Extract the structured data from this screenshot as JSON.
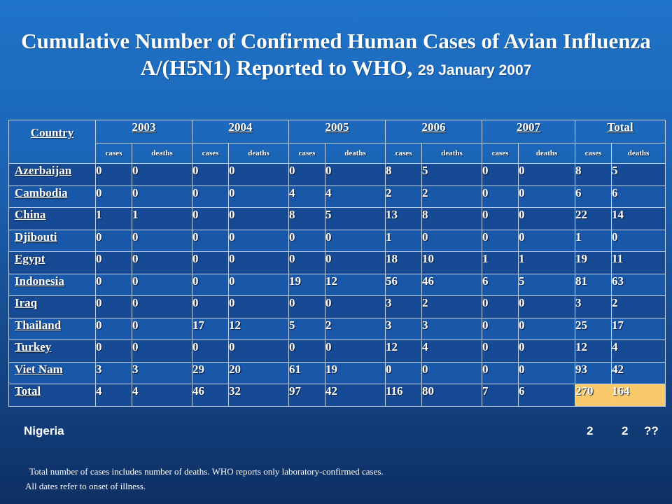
{
  "title": {
    "main": "Cumulative Number of Confirmed Human Cases of Avian Influenza A/(H5N1) Reported to WHO,",
    "date": "29 January 2007"
  },
  "table": {
    "country_header": "Country",
    "years": [
      "2003",
      "2004",
      "2005",
      "2006",
      "2007",
      "Total"
    ],
    "sub_cases": "cases",
    "sub_deaths": "deaths",
    "rows": [
      {
        "country": "Azerbaijan",
        "values": [
          "0",
          "0",
          "0",
          "0",
          "0",
          "0",
          "8",
          "5",
          "0",
          "0",
          "8",
          "5"
        ]
      },
      {
        "country": "Cambodia",
        "values": [
          "0",
          "0",
          "0",
          "0",
          "4",
          "4",
          "2",
          "2",
          "0",
          "0",
          "6",
          "6"
        ]
      },
      {
        "country": "China",
        "values": [
          "1",
          "1",
          "0",
          "0",
          "8",
          "5",
          "13",
          "8",
          "0",
          "0",
          "22",
          "14"
        ]
      },
      {
        "country": "Djibouti",
        "values": [
          "0",
          "0",
          "0",
          "0",
          "0",
          "0",
          "1",
          "0",
          "0",
          "0",
          "1",
          "0"
        ]
      },
      {
        "country": "Egypt",
        "values": [
          "0",
          "0",
          "0",
          "0",
          "0",
          "0",
          "18",
          "10",
          "1",
          "1",
          "19",
          "11"
        ]
      },
      {
        "country": "Indonesia",
        "values": [
          "0",
          "0",
          "0",
          "0",
          "19",
          "12",
          "56",
          "46",
          "6",
          "5",
          "81",
          "63"
        ]
      },
      {
        "country": "Iraq",
        "values": [
          "0",
          "0",
          "0",
          "0",
          "0",
          "0",
          "3",
          "2",
          "0",
          "0",
          "3",
          "2"
        ]
      },
      {
        "country": "Thailand",
        "values": [
          "0",
          "0",
          "17",
          "12",
          "5",
          "2",
          "3",
          "3",
          "0",
          "0",
          "25",
          "17"
        ]
      },
      {
        "country": "Turkey",
        "values": [
          "0",
          "0",
          "0",
          "0",
          "0",
          "0",
          "12",
          "4",
          "0",
          "0",
          "12",
          "4"
        ]
      },
      {
        "country": "Viet Nam",
        "values": [
          "3",
          "3",
          "29",
          "20",
          "61",
          "19",
          "0",
          "0",
          "0",
          "0",
          "93",
          "42"
        ]
      },
      {
        "country": "Total",
        "values": [
          "4",
          "4",
          "46",
          "32",
          "97",
          "42",
          "116",
          "80",
          "7",
          "6",
          "270",
          "164"
        ]
      }
    ]
  },
  "extra_row": {
    "country": "Nigeria",
    "v1": "2",
    "v2": "2",
    "v3": "??"
  },
  "footnotes": {
    "line1": "Total number of cases includes number of deaths. WHO reports only laboratory-confirmed cases.",
    "line2": "All dates refer to onset of illness."
  },
  "colors": {
    "highlight": "#f8ca6c",
    "row_dark": "#164a95",
    "row_light": "#1957a8"
  }
}
